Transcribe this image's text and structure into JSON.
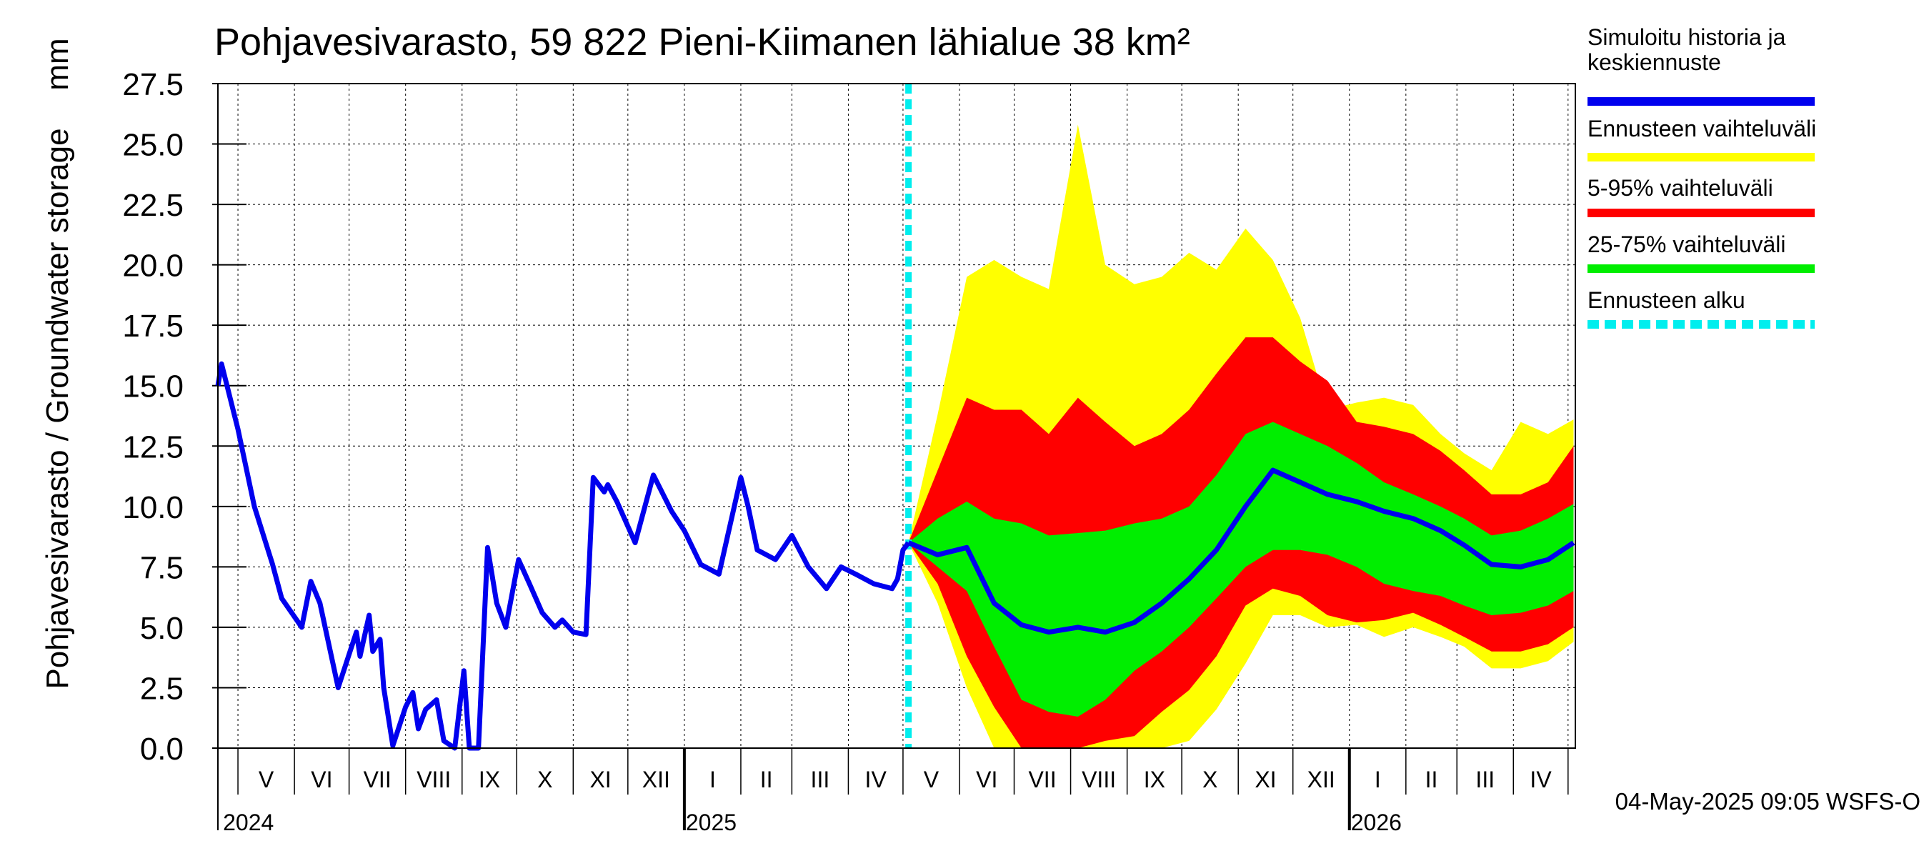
{
  "title": "Pohjavesivarasto, 59 822 Pieni-Kiimanen lähialue 38 km²",
  "footer": "04-May-2025 09:05 WSFS-O",
  "chart_data": {
    "type": "area",
    "title": "Pohjavesivarasto, 59 822 Pieni-Kiimanen lähialue 38 km²",
    "ylabel": "Pohjavesivarasto / Groundwater storage",
    "yunit": "mm",
    "ylim": [
      0,
      27.5
    ],
    "yticks": [
      "0.0",
      "2.5",
      "5.0",
      "7.5",
      "10.0",
      "12.5",
      "15.0",
      "17.5",
      "20.0",
      "22.5",
      "25.0",
      "27.5"
    ],
    "xlim": [
      "2024-04-20",
      "2026-05-05"
    ],
    "month_labels": [
      "V",
      "VI",
      "VII",
      "VIII",
      "IX",
      "X",
      "XI",
      "XII",
      "I",
      "II",
      "III",
      "IV",
      "V",
      "VI",
      "VII",
      "VIII",
      "IX",
      "X",
      "XI",
      "XII",
      "I",
      "II",
      "III",
      "IV"
    ],
    "year_labels": [
      "2024",
      "2025",
      "2026"
    ],
    "grid": true,
    "forecast_start": "2025-05-04",
    "legend": {
      "placement": "right",
      "entries": [
        {
          "label": "Simuloitu historia ja keskiennuste",
          "color": "#0000ee",
          "style": "solid"
        },
        {
          "label": "Ennusteen vaihteluväli",
          "color": "#ffff00",
          "style": "solid"
        },
        {
          "label": "5-95% vaihteluväli",
          "color": "#ff0000",
          "style": "solid"
        },
        {
          "label": "25-75% vaihteluväli",
          "color": "#00ee00",
          "style": "solid"
        },
        {
          "label": "Ennusteen alku",
          "color": "#00eeee",
          "style": "dashed"
        }
      ]
    },
    "history": {
      "name": "Simuloitu historia ja keskiennuste",
      "x": [
        "2024-04-20",
        "2024-04-22",
        "2024-04-25",
        "2024-05-01",
        "2024-05-10",
        "2024-05-20",
        "2024-05-25",
        "2024-06-05",
        "2024-06-10",
        "2024-06-15",
        "2024-06-25",
        "2024-07-05",
        "2024-07-07",
        "2024-07-12",
        "2024-07-14",
        "2024-07-18",
        "2024-07-20",
        "2024-07-25",
        "2024-08-01",
        "2024-08-05",
        "2024-08-08",
        "2024-08-12",
        "2024-08-18",
        "2024-08-22",
        "2024-08-28",
        "2024-09-02",
        "2024-09-05",
        "2024-09-10",
        "2024-09-15",
        "2024-09-20",
        "2024-09-25",
        "2024-10-02",
        "2024-10-08",
        "2024-10-15",
        "2024-10-22",
        "2024-10-26",
        "2024-11-01",
        "2024-11-08",
        "2024-11-12",
        "2024-11-18",
        "2024-11-20",
        "2024-11-25",
        "2024-12-05",
        "2024-12-15",
        "2024-12-25",
        "2025-01-01",
        "2025-01-10",
        "2025-01-20",
        "2025-02-01",
        "2025-02-05",
        "2025-02-10",
        "2025-02-20",
        "2025-03-01",
        "2025-03-10",
        "2025-03-20",
        "2025-03-28",
        "2025-04-05",
        "2025-04-15",
        "2025-04-25",
        "2025-04-28",
        "2025-05-01",
        "2025-05-04"
      ],
      "values": [
        15.0,
        15.9,
        15.0,
        13.2,
        10.0,
        7.6,
        6.2,
        5.0,
        6.9,
        6.0,
        2.5,
        4.8,
        3.8,
        5.5,
        4.0,
        4.5,
        2.5,
        0.1,
        1.7,
        2.3,
        0.8,
        1.6,
        2.0,
        0.3,
        0.0,
        3.2,
        0.0,
        0.0,
        8.3,
        6.0,
        5.0,
        7.8,
        6.8,
        5.6,
        5.0,
        5.3,
        4.8,
        4.7,
        11.2,
        10.6,
        10.9,
        10.2,
        8.5,
        11.3,
        9.8,
        9.0,
        7.6,
        7.2,
        11.2,
        10.0,
        8.2,
        7.8,
        8.8,
        7.5,
        6.6,
        7.5,
        7.2,
        6.8,
        6.6,
        7.0,
        8.2,
        8.5
      ]
    },
    "forecast": {
      "x": [
        "2025-05-04",
        "2025-05-20",
        "2025-06-05",
        "2025-06-20",
        "2025-07-05",
        "2025-07-20",
        "2025-08-05",
        "2025-08-20",
        "2025-09-05",
        "2025-09-20",
        "2025-10-05",
        "2025-10-20",
        "2025-11-05",
        "2025-11-20",
        "2025-12-05",
        "2025-12-20",
        "2026-01-05",
        "2026-01-20",
        "2026-02-05",
        "2026-02-20",
        "2026-03-05",
        "2026-03-20",
        "2026-04-05",
        "2026-04-20",
        "2026-05-04"
      ],
      "min": [
        8.5,
        6.0,
        2.5,
        0.0,
        0.0,
        0.0,
        0.0,
        0.0,
        0.0,
        0.0,
        0.3,
        1.6,
        3.5,
        5.5,
        5.5,
        5.0,
        5.1,
        4.6,
        5.0,
        4.6,
        4.2,
        3.3,
        3.3,
        3.6,
        4.4
      ],
      "p5": [
        8.5,
        6.8,
        3.8,
        1.7,
        0.0,
        0.0,
        0.0,
        0.3,
        0.5,
        1.5,
        2.4,
        3.8,
        5.9,
        6.6,
        6.3,
        5.5,
        5.2,
        5.3,
        5.6,
        5.1,
        4.6,
        4.0,
        4.0,
        4.3,
        5.0
      ],
      "p25": [
        8.5,
        7.5,
        6.5,
        4.2,
        2.0,
        1.5,
        1.3,
        2.0,
        3.2,
        4.0,
        5.0,
        6.2,
        7.5,
        8.2,
        8.2,
        8.0,
        7.5,
        6.8,
        6.5,
        6.3,
        5.9,
        5.5,
        5.6,
        5.9,
        6.5
      ],
      "median": [
        8.5,
        8.0,
        8.3,
        6.0,
        5.1,
        4.8,
        5.0,
        4.8,
        5.2,
        6.0,
        7.0,
        8.2,
        10.0,
        11.5,
        11.0,
        10.5,
        10.2,
        9.8,
        9.5,
        9.0,
        8.4,
        7.6,
        7.5,
        7.8,
        8.5
      ],
      "p75": [
        8.5,
        9.5,
        10.2,
        9.5,
        9.3,
        8.8,
        8.9,
        9.0,
        9.3,
        9.5,
        10.0,
        11.3,
        13.0,
        13.5,
        13.0,
        12.5,
        11.8,
        11.0,
        10.5,
        10.0,
        9.5,
        8.8,
        9.0,
        9.5,
        10.1
      ],
      "p95": [
        8.5,
        11.5,
        14.5,
        14.0,
        14.0,
        13.0,
        14.5,
        13.5,
        12.5,
        13.0,
        14.0,
        15.5,
        17.0,
        17.0,
        16.0,
        15.2,
        13.5,
        13.3,
        13.0,
        12.3,
        11.5,
        10.5,
        10.5,
        11.0,
        12.5
      ],
      "max": [
        8.5,
        13.8,
        19.5,
        20.2,
        19.5,
        19.0,
        25.8,
        20.0,
        19.2,
        19.5,
        20.5,
        19.8,
        21.5,
        20.2,
        17.8,
        14.0,
        14.3,
        14.5,
        14.2,
        13.0,
        12.2,
        11.5,
        13.5,
        13.0,
        13.6
      ]
    },
    "colors": {
      "history": "#0000ee",
      "band_full": "#ffff00",
      "band_5_95": "#ff0000",
      "band_25_75": "#00ee00",
      "forecast_start": "#00eeee"
    }
  }
}
